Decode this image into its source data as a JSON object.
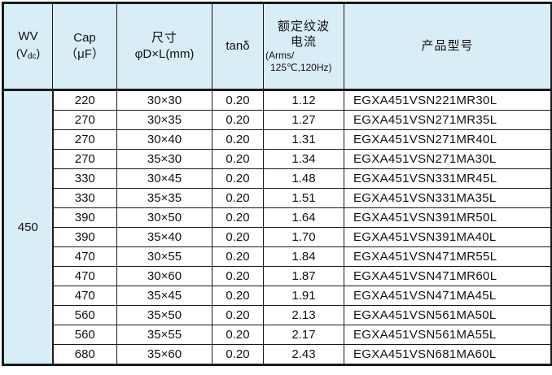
{
  "table": {
    "header": {
      "wv": {
        "line1": "WV",
        "line2_open": "(V",
        "sub": "dc",
        "line2_close": ")"
      },
      "cap": {
        "line1": "Cap",
        "line2": "（μF）"
      },
      "size": {
        "line1": "尺寸",
        "line2": "φD×L(mm)"
      },
      "tand": "tanδ",
      "ripple": {
        "line1": "额定纹波",
        "line2": "电流",
        "line3": "(Arms/",
        "line4": "125℃,120Hz)"
      },
      "model": "产品型号"
    },
    "wv_value": "450",
    "rows": [
      {
        "cap": "220",
        "size": "30×30",
        "tand": "0.20",
        "ripple": "1.12",
        "model": "EGXA451VSN221MR30L"
      },
      {
        "cap": "270",
        "size": "30×35",
        "tand": "0.20",
        "ripple": "1.27",
        "model": "EGXA451VSN271MR35L"
      },
      {
        "cap": "270",
        "size": "30×40",
        "tand": "0.20",
        "ripple": "1.31",
        "model": "EGXA451VSN271MR40L"
      },
      {
        "cap": "270",
        "size": "35×30",
        "tand": "0.20",
        "ripple": "1.34",
        "model": "EGXA451VSN271MA30L"
      },
      {
        "cap": "330",
        "size": "30×45",
        "tand": "0.20",
        "ripple": "1.48",
        "model": "EGXA451VSN331MR45L"
      },
      {
        "cap": "330",
        "size": "35×35",
        "tand": "0.20",
        "ripple": "1.51",
        "model": "EGXA451VSN331MA35L"
      },
      {
        "cap": "390",
        "size": "30×50",
        "tand": "0.20",
        "ripple": "1.64",
        "model": "EGXA451VSN391MR50L"
      },
      {
        "cap": "390",
        "size": "35×40",
        "tand": "0.20",
        "ripple": "1.70",
        "model": "EGXA451VSN391MA40L"
      },
      {
        "cap": "470",
        "size": "30×55",
        "tand": "0.20",
        "ripple": "1.84",
        "model": "EGXA451VSN471MR55L"
      },
      {
        "cap": "470",
        "size": "30×60",
        "tand": "0.20",
        "ripple": "1.87",
        "model": "EGXA451VSN471MR60L"
      },
      {
        "cap": "470",
        "size": "35×45",
        "tand": "0.20",
        "ripple": "1.91",
        "model": "EGXA451VSN471MA45L"
      },
      {
        "cap": "560",
        "size": "35×50",
        "tand": "0.20",
        "ripple": "2.13",
        "model": "EGXA451VSN561MA50L"
      },
      {
        "cap": "560",
        "size": "35×55",
        "tand": "0.20",
        "ripple": "2.17",
        "model": "EGXA451VSN561MA55L"
      },
      {
        "cap": "680",
        "size": "35×60",
        "tand": "0.20",
        "ripple": "2.43",
        "model": "EGXA451VSN681MA60L"
      }
    ]
  },
  "colors": {
    "header_bg": "#d9edf6",
    "border": "#1a1a1a",
    "text": "#111111"
  }
}
